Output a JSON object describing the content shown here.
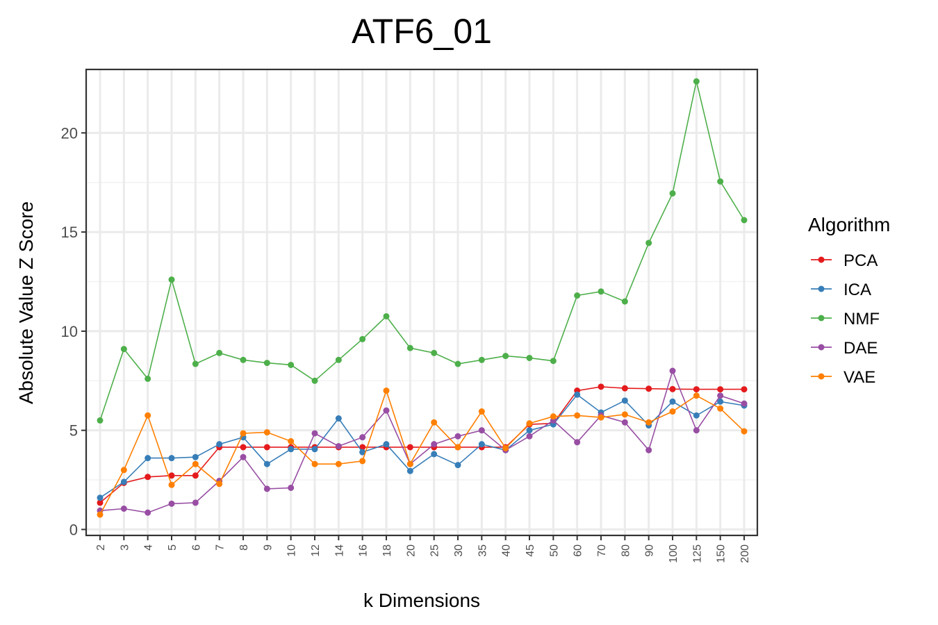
{
  "chart_data": {
    "type": "line",
    "title": "ATF6_01",
    "xlabel": "k Dimensions",
    "ylabel": "Absolute Value Z Score",
    "ylim": [
      -0.3,
      23.2
    ],
    "yticks": [
      0,
      5,
      10,
      15,
      20
    ],
    "grid": true,
    "legend_title": "Algorithm",
    "legend_position": "right",
    "categories": [
      "2",
      "3",
      "4",
      "5",
      "6",
      "7",
      "8",
      "9",
      "10",
      "12",
      "14",
      "16",
      "18",
      "20",
      "25",
      "30",
      "35",
      "40",
      "45",
      "50",
      "60",
      "70",
      "80",
      "90",
      "100",
      "125",
      "150",
      "200"
    ],
    "series": [
      {
        "name": "PCA",
        "color": "#e41a1c",
        "values": [
          1.35,
          2.35,
          2.65,
          2.72,
          2.72,
          4.15,
          4.15,
          4.15,
          4.15,
          4.15,
          4.15,
          4.15,
          4.15,
          4.15,
          4.15,
          4.15,
          4.15,
          4.15,
          5.3,
          5.35,
          7.0,
          7.2,
          7.12,
          7.1,
          7.08,
          7.07,
          7.07,
          7.07
        ]
      },
      {
        "name": "ICA",
        "color": "#377eb8",
        "values": [
          1.6,
          2.4,
          3.6,
          3.6,
          3.65,
          4.3,
          4.65,
          3.3,
          4.05,
          4.05,
          5.6,
          3.9,
          4.3,
          2.95,
          3.8,
          3.25,
          4.3,
          4.0,
          5.0,
          5.3,
          6.8,
          5.9,
          6.5,
          5.25,
          6.45,
          5.75,
          6.45,
          6.25
        ]
      },
      {
        "name": "NMF",
        "color": "#4daf4a",
        "values": [
          5.5,
          9.1,
          7.6,
          12.6,
          8.35,
          8.9,
          8.55,
          8.4,
          8.3,
          7.5,
          8.55,
          9.6,
          10.75,
          9.15,
          8.9,
          8.35,
          8.55,
          8.75,
          8.65,
          8.5,
          11.8,
          12.0,
          11.5,
          14.45,
          16.95,
          22.6,
          17.55,
          15.6
        ]
      },
      {
        "name": "DAE",
        "color": "#984ea3",
        "values": [
          0.95,
          1.05,
          0.85,
          1.3,
          1.35,
          2.45,
          3.65,
          2.05,
          2.1,
          4.85,
          4.2,
          4.65,
          6.0,
          3.3,
          4.3,
          4.7,
          5.0,
          4.0,
          4.7,
          5.5,
          4.4,
          5.75,
          5.4,
          4.0,
          8.0,
          5.0,
          6.75,
          6.35
        ]
      },
      {
        "name": "VAE",
        "color": "#ff7f00",
        "values": [
          0.75,
          3.0,
          5.75,
          2.25,
          3.3,
          2.3,
          4.85,
          4.9,
          4.45,
          3.3,
          3.3,
          3.45,
          7.0,
          3.3,
          5.4,
          4.15,
          5.95,
          4.1,
          5.35,
          5.7,
          5.75,
          5.65,
          5.8,
          5.4,
          5.95,
          6.75,
          6.1,
          4.95
        ]
      }
    ]
  }
}
